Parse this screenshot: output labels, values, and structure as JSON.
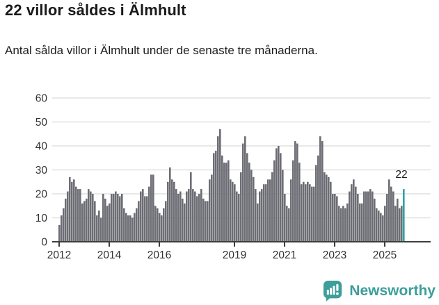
{
  "header": {
    "title": "22 villor såldes i Älmhult",
    "subtitle": "Antal sålda villor i Älmhult under de senaste tre månaderna."
  },
  "chart_data": {
    "type": "bar",
    "title": "22 villor såldes i Älmhult",
    "xlabel": "",
    "ylabel": "",
    "unit": "antal sålda villor (rullande 3 månader)",
    "frequency": "monthly",
    "start": "2012-01",
    "end": "2025-10",
    "ylim": [
      0,
      60
    ],
    "grid": true,
    "yticks": [
      0,
      10,
      20,
      30,
      40,
      50,
      60
    ],
    "xticks": [
      {
        "label": "2012",
        "index": 0
      },
      {
        "label": "2014",
        "index": 24
      },
      {
        "label": "2016",
        "index": 48
      },
      {
        "label": "2019",
        "index": 84
      },
      {
        "label": "2021",
        "index": 108
      },
      {
        "label": "2023",
        "index": 132
      },
      {
        "label": "2025",
        "index": 156
      }
    ],
    "values": [
      7,
      11,
      14,
      18,
      21,
      27,
      25,
      26,
      23,
      22,
      22,
      16,
      17,
      18,
      22,
      21,
      20,
      17,
      11,
      13,
      10,
      20,
      18,
      15,
      16,
      20,
      20,
      21,
      20,
      19,
      20,
      14,
      12,
      11,
      11,
      10,
      12,
      14,
      17,
      21,
      22,
      19,
      19,
      23,
      28,
      28,
      15,
      14,
      12,
      11,
      14,
      17,
      25,
      31,
      26,
      25,
      22,
      20,
      21,
      18,
      16,
      21,
      22,
      29,
      22,
      21,
      19,
      20,
      22,
      18,
      17,
      17,
      26,
      28,
      37,
      38,
      44,
      47,
      36,
      33,
      33,
      34,
      26,
      25,
      24,
      21,
      20,
      29,
      41,
      44,
      37,
      33,
      30,
      27,
      22,
      16,
      21,
      22,
      24,
      24,
      26,
      26,
      29,
      34,
      39,
      40,
      37,
      30,
      20,
      15,
      14,
      26,
      34,
      42,
      41,
      33,
      24,
      25,
      24,
      25,
      24,
      23,
      23,
      32,
      36,
      44,
      42,
      29,
      28,
      27,
      25,
      20,
      20,
      19,
      15,
      14,
      15,
      14,
      16,
      21,
      24,
      26,
      23,
      20,
      16,
      16,
      21,
      21,
      21,
      22,
      21,
      18,
      14,
      13,
      12,
      11,
      15,
      20,
      26,
      23,
      21,
      15,
      18,
      14,
      15,
      22
    ],
    "highlight": {
      "index": 165,
      "value": 22,
      "label": "22"
    },
    "colors": {
      "bar": "#6d6d75",
      "highlight": "#2aa4a4",
      "grid": "#e1e1e1",
      "axis": "#3d3d3d",
      "tick_text": "#333333",
      "annotation_text": "#191919"
    },
    "legend": []
  },
  "footer": {
    "brand": "Newsworthy",
    "logo_icon": "newsworthy-bubble-barchart-icon",
    "brand_color": "#3d9e9a"
  }
}
